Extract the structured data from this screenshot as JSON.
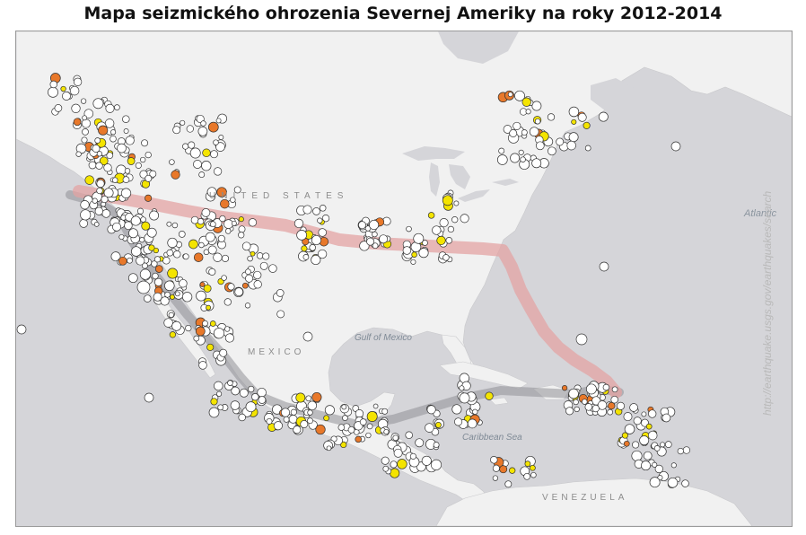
{
  "title": "Mapa seizmického ohrozenia Severnej Ameriky na roky 2012-2014",
  "labels": {
    "usa": "UNITED STATES",
    "mexico": "MEXICO",
    "gulf": "Gulf of Mexico",
    "caribbean": "Caribbean Sea",
    "atlantic": "Atlantic",
    "venezuela": "VENEZUELA",
    "watermark": "http://earthquake.usgs.gov/earthquakes/search"
  },
  "colors": {
    "ocean": "#d5d5d9",
    "land": "#f1f1f1",
    "hazard_band": "#e3a3a3",
    "trench_band": "#8f9095",
    "quake_small": "#ffffff",
    "quake_medium": "#f4e400",
    "quake_large": "#e8782a"
  },
  "icons": {
    "quake_marker": "circle-marker-icon"
  }
}
